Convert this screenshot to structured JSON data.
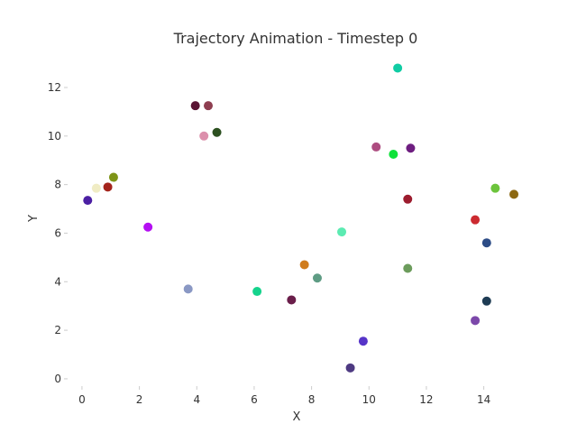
{
  "chart_data": {
    "type": "scatter",
    "title": "Trajectory Animation - Timestep 0",
    "xlabel": "X",
    "ylabel": "Y",
    "xlim": [
      -0.5,
      15.3
    ],
    "ylim": [
      -0.3,
      13.3
    ],
    "xticks": [
      0,
      2,
      4,
      6,
      8,
      10,
      12,
      14
    ],
    "yticks": [
      0,
      2,
      4,
      6,
      8,
      10,
      12
    ],
    "grid": false,
    "legend": false,
    "points": [
      {
        "x": 0.2,
        "y": 7.35,
        "color": "#4b1fa3"
      },
      {
        "x": 0.5,
        "y": 7.85,
        "color": "#f0ecc4"
      },
      {
        "x": 0.9,
        "y": 7.9,
        "color": "#a4241c"
      },
      {
        "x": 1.1,
        "y": 8.3,
        "color": "#7e9417"
      },
      {
        "x": 2.3,
        "y": 6.25,
        "color": "#b40ff2"
      },
      {
        "x": 3.7,
        "y": 3.7,
        "color": "#8a98c4"
      },
      {
        "x": 3.95,
        "y": 11.25,
        "color": "#5a1434"
      },
      {
        "x": 4.25,
        "y": 10.0,
        "color": "#dc90ac"
      },
      {
        "x": 4.4,
        "y": 11.25,
        "color": "#8e3e50"
      },
      {
        "x": 4.7,
        "y": 10.15,
        "color": "#2c5020"
      },
      {
        "x": 6.1,
        "y": 3.6,
        "color": "#15d38c"
      },
      {
        "x": 7.3,
        "y": 3.25,
        "color": "#6a1e4a"
      },
      {
        "x": 7.75,
        "y": 4.7,
        "color": "#d07c1c"
      },
      {
        "x": 8.2,
        "y": 4.15,
        "color": "#5e9c84"
      },
      {
        "x": 9.05,
        "y": 6.05,
        "color": "#5cebb2"
      },
      {
        "x": 9.35,
        "y": 0.45,
        "color": "#4e3a82"
      },
      {
        "x": 9.8,
        "y": 1.55,
        "color": "#5634c8"
      },
      {
        "x": 10.25,
        "y": 9.55,
        "color": "#ad4c80"
      },
      {
        "x": 10.85,
        "y": 9.25,
        "color": "#0fe23a"
      },
      {
        "x": 11.0,
        "y": 12.8,
        "color": "#10cca4"
      },
      {
        "x": 11.35,
        "y": 7.4,
        "color": "#9c1c2e"
      },
      {
        "x": 11.35,
        "y": 4.55,
        "color": "#6c9c5c"
      },
      {
        "x": 11.45,
        "y": 9.5,
        "color": "#6e1e80"
      },
      {
        "x": 13.7,
        "y": 6.55,
        "color": "#cc2a30"
      },
      {
        "x": 13.7,
        "y": 2.4,
        "color": "#7c48aa"
      },
      {
        "x": 14.1,
        "y": 5.6,
        "color": "#2c4c86"
      },
      {
        "x": 14.1,
        "y": 3.2,
        "color": "#1e3c54"
      },
      {
        "x": 14.4,
        "y": 7.85,
        "color": "#6cc43c"
      },
      {
        "x": 15.05,
        "y": 7.6,
        "color": "#8c6812"
      }
    ]
  }
}
